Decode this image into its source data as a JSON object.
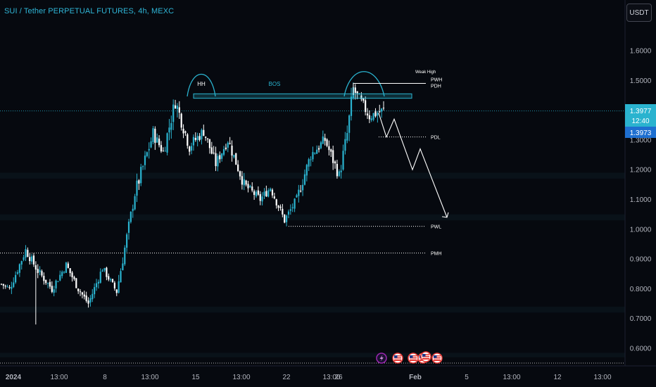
{
  "header": {
    "title": "SUI / Tether PERPETUAL FUTURES, 4h, MEXC",
    "currency_button": "USDT"
  },
  "price_badges": {
    "last_price": "1.3977",
    "countdown": "12:40",
    "mark_price": "1.3973",
    "last_color": "#2ab3cf",
    "mark_color": "#1e6fd0"
  },
  "icons": {
    "event_flash": "lightning-icon",
    "event_flags": [
      "us-flag-icon",
      "us-flag-icon",
      "us-flag-icon",
      "us-flag-icon",
      "us-flag-icon"
    ]
  },
  "chart_data": {
    "type": "candlestick",
    "title": "SUI / Tether PERPETUAL FUTURES, 4h, MEXC",
    "ylim": [
      0.54,
      1.72
    ],
    "y_ticks": [
      "1.6000",
      "1.5000",
      "1.4000",
      "1.3000",
      "1.2000",
      "1.1000",
      "1.0000",
      "0.9000",
      "0.8000",
      "0.7000",
      "0.6000"
    ],
    "y_tick_values": [
      1.6,
      1.5,
      1.4,
      1.3,
      1.2,
      1.1,
      1.0,
      0.9,
      0.8,
      0.7,
      0.6
    ],
    "x_ticks": [
      "2024",
      "13:00",
      "8",
      "13:00",
      "15",
      "13:00",
      "22",
      "13:00",
      "26",
      "Feb",
      "5",
      "13:00",
      "12",
      "13:00"
    ],
    "x_tick_bold": [
      true,
      false,
      false,
      false,
      false,
      false,
      false,
      false,
      false,
      true,
      false,
      false,
      false,
      false
    ],
    "colors": {
      "up": "#2ab3cf",
      "down": "#ffffff",
      "line": "#ffffff",
      "zone": "#2ab3cf"
    },
    "candle_segments": [
      {
        "from": 0.82,
        "to": 0.8,
        "n": 5,
        "vol": 0.022
      },
      {
        "from": 0.8,
        "to": 0.93,
        "n": 8,
        "vol": 0.03
      },
      {
        "from": 0.93,
        "to": 0.86,
        "n": 6,
        "vol": 0.03
      },
      {
        "from": 0.86,
        "to": 0.8,
        "n": 7,
        "vol": 0.028
      },
      {
        "from": 0.8,
        "to": 0.88,
        "n": 7,
        "vol": 0.028
      },
      {
        "from": 0.88,
        "to": 0.8,
        "n": 6,
        "vol": 0.026
      },
      {
        "from": 0.8,
        "to": 0.75,
        "n": 5,
        "vol": 0.024
      },
      {
        "from": 0.75,
        "to": 0.87,
        "n": 7,
        "vol": 0.028
      },
      {
        "from": 0.87,
        "to": 0.79,
        "n": 7,
        "vol": 0.024
      },
      {
        "from": 0.79,
        "to": 1.12,
        "n": 9,
        "vol": 0.04
      },
      {
        "from": 1.12,
        "to": 1.32,
        "n": 9,
        "vol": 0.05
      },
      {
        "from": 1.32,
        "to": 1.26,
        "n": 5,
        "vol": 0.04
      },
      {
        "from": 1.26,
        "to": 1.43,
        "n": 6,
        "vol": 0.05
      },
      {
        "from": 1.43,
        "to": 1.28,
        "n": 7,
        "vol": 0.05
      },
      {
        "from": 1.28,
        "to": 1.33,
        "n": 7,
        "vol": 0.04
      },
      {
        "from": 1.33,
        "to": 1.22,
        "n": 6,
        "vol": 0.04
      },
      {
        "from": 1.22,
        "to": 1.3,
        "n": 6,
        "vol": 0.035
      },
      {
        "from": 1.3,
        "to": 1.15,
        "n": 8,
        "vol": 0.04
      },
      {
        "from": 1.15,
        "to": 1.1,
        "n": 8,
        "vol": 0.03
      },
      {
        "from": 1.1,
        "to": 1.14,
        "n": 5,
        "vol": 0.03
      },
      {
        "from": 1.14,
        "to": 1.03,
        "n": 7,
        "vol": 0.03
      },
      {
        "from": 1.03,
        "to": 1.1,
        "n": 6,
        "vol": 0.03
      },
      {
        "from": 1.1,
        "to": 1.25,
        "n": 7,
        "vol": 0.04
      },
      {
        "from": 1.25,
        "to": 1.3,
        "n": 7,
        "vol": 0.04
      },
      {
        "from": 1.3,
        "to": 1.18,
        "n": 7,
        "vol": 0.04
      },
      {
        "from": 1.18,
        "to": 1.32,
        "n": 4,
        "vol": 0.05
      },
      {
        "from": 1.32,
        "to": 1.47,
        "n": 3,
        "vol": 0.06
      },
      {
        "from": 1.47,
        "to": 1.38,
        "n": 8,
        "vol": 0.04
      },
      {
        "from": 1.38,
        "to": 1.4,
        "n": 7,
        "vol": 0.04
      }
    ],
    "levels": [
      {
        "label": "PDL",
        "value": 1.31
      },
      {
        "label": "PWL",
        "value": 1.01
      },
      {
        "label": "PMH",
        "value": 0.92
      },
      {
        "label": "PDH",
        "value": 1.49
      },
      {
        "label": "PWH",
        "value": 1.495
      }
    ],
    "annotations": {
      "hh": "HH",
      "bos": "BOS",
      "weak_high": "Weak High",
      "pdh": "PDH",
      "pwh": "PWH",
      "pdl": "PDL",
      "pwl": "PWL",
      "pmh": "PMH"
    },
    "bos_zone": [
      1.44,
      1.455
    ],
    "current_price": 1.3977,
    "forecast_path": [
      {
        "t": 0,
        "price": 1.4
      },
      {
        "t": 1,
        "price": 1.31
      },
      {
        "t": 2,
        "price": 1.37
      },
      {
        "t": 3,
        "price": 1.2
      },
      {
        "t": 4,
        "price": 1.27
      },
      {
        "t": 5,
        "price": 1.04
      }
    ]
  }
}
